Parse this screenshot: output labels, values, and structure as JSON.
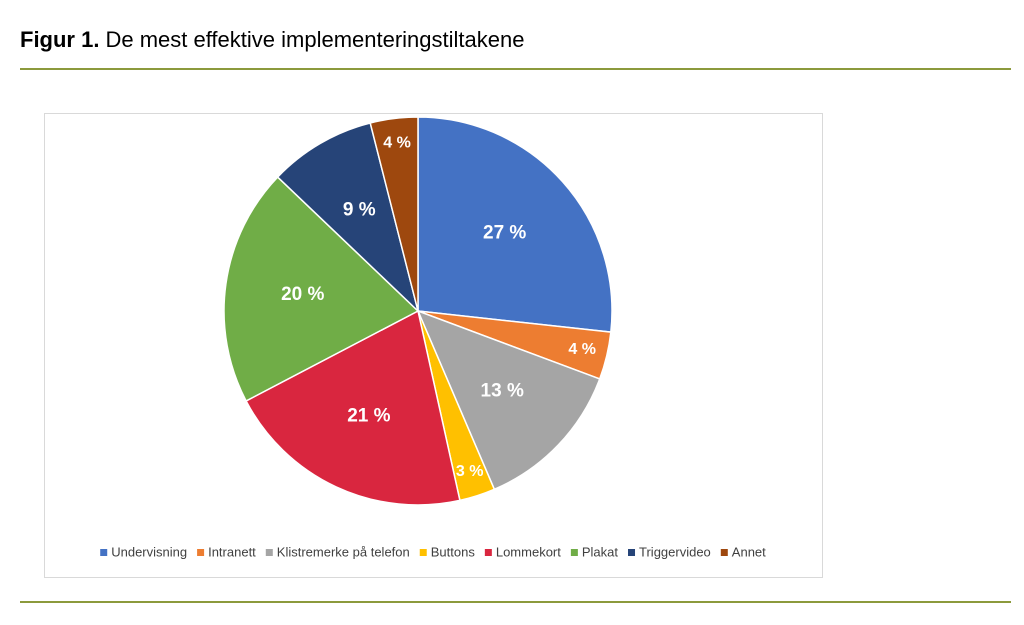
{
  "chart_data": {
    "type": "pie",
    "figure_label": "Figur 1.",
    "title": "De mest effektive implementeringstiltakene",
    "categories": [
      "Undervisning",
      "Intranett",
      "Klistremerke på telefon",
      "Buttons",
      "Lommekort",
      "Plakat",
      "Triggervideo",
      "Annet"
    ],
    "values": [
      27,
      4,
      13,
      3,
      21,
      20,
      9,
      4
    ],
    "value_labels": [
      "27 %",
      "4 %",
      "13 %",
      "3 %",
      "21 %",
      "20 %",
      "9 %",
      "4 %"
    ],
    "colors": [
      "#4472c4",
      "#ed7d31",
      "#a5a5a5",
      "#ffc000",
      "#d9263f",
      "#70ad47",
      "#264478",
      "#9e480e"
    ],
    "legend": "bottom"
  }
}
